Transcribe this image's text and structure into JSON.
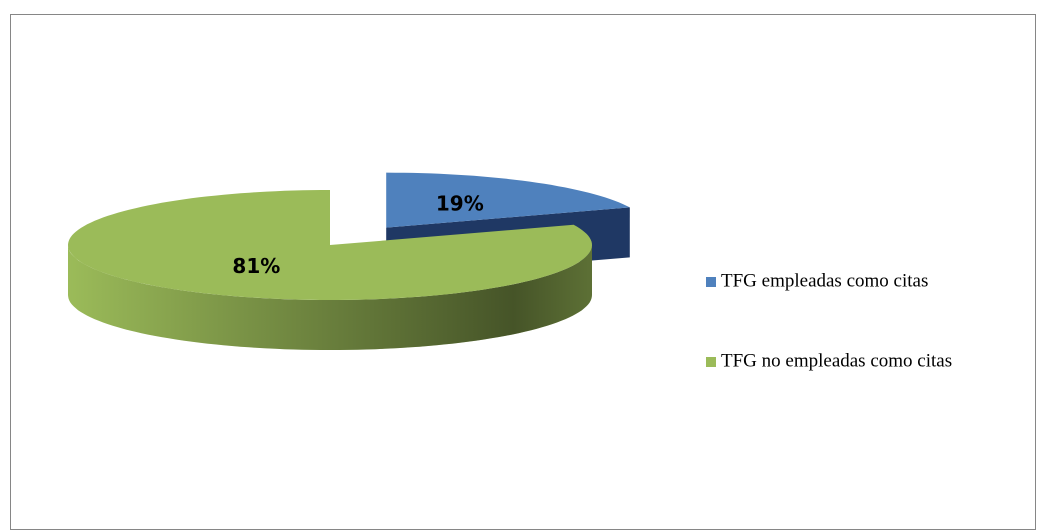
{
  "chart_data": {
    "type": "pie",
    "categories": [
      "TFG empleadas como citas",
      "TFG no empleadas como citas"
    ],
    "values": [
      19,
      81
    ],
    "value_labels": [
      "19%",
      "81%"
    ],
    "colors": [
      "#4f81bd",
      "#9bbb59"
    ],
    "legend": "right"
  }
}
